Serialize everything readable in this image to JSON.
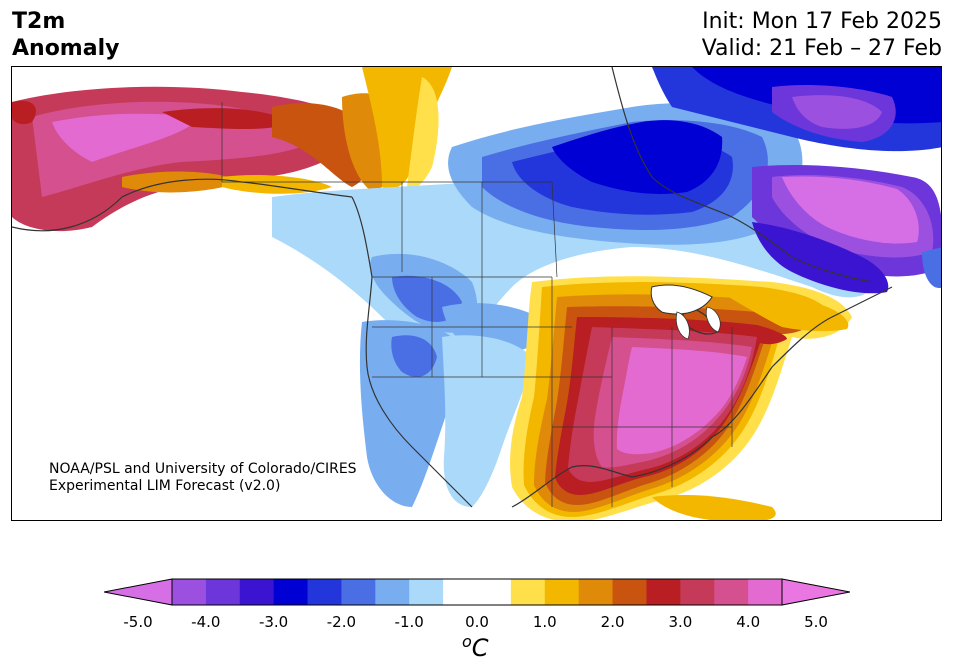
{
  "header": {
    "title_line1": "T2m",
    "title_line2": "Anomaly",
    "init": "Init: Mon 17 Feb 2025",
    "valid": "Valid: 21 Feb – 27 Feb"
  },
  "credit": {
    "line1": "NOAA/PSL and University of Colorado/CIRES",
    "line2": "Experimental LIM Forecast (v2.0)"
  },
  "colorbar": {
    "ticks": [
      "-5.0",
      "-4.0",
      "-3.0",
      "-2.0",
      "-1.0",
      "0.0",
      "1.0",
      "2.0",
      "3.0",
      "4.0",
      "5.0"
    ],
    "colors": [
      "#d66fe6",
      "#9c50e0",
      "#6d36da",
      "#3a14d0",
      "#0000d4",
      "#2336dc",
      "#4a6fe4",
      "#78aef0",
      "#aad9fa",
      "#ffffff",
      "#ffffff",
      "#ffe04a",
      "#f3b700",
      "#e08a0a",
      "#c85410",
      "#b81e22",
      "#c53a58",
      "#d4508e",
      "#e36ad0",
      "#ea76e2"
    ],
    "unit": "C",
    "unit_prefix": "o"
  },
  "legend_colors": {
    "strong_warm": "#e36ad0",
    "warm": "#b81e22",
    "mild_warm": "#f3b700",
    "neutral": "#ffffff",
    "mild_cold": "#aad9fa",
    "cold": "#4a6fe4",
    "strong_cold": "#0000d4",
    "extreme_cold": "#d66fe6"
  }
}
